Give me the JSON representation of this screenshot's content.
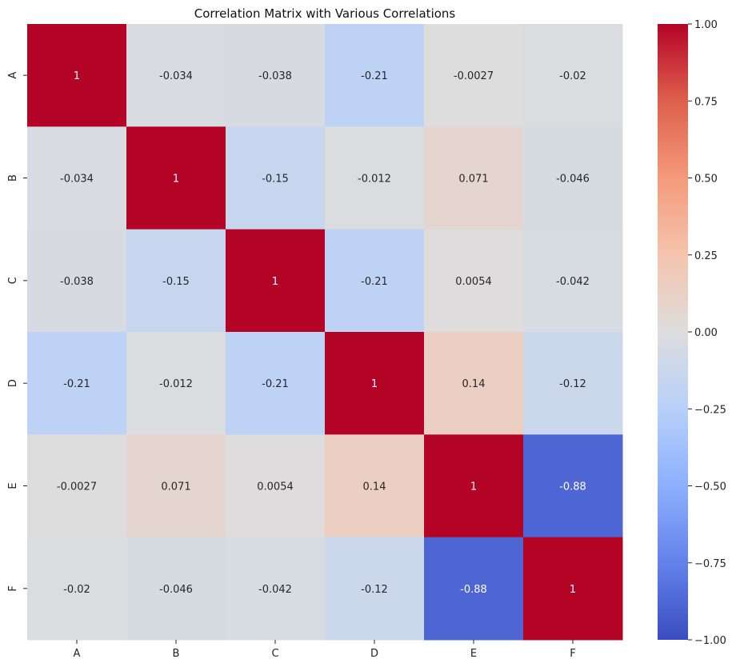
{
  "chart_data": {
    "type": "heatmap",
    "title": "Correlation Matrix with Various Correlations",
    "xlabel": "",
    "ylabel": "",
    "x_categories": [
      "A",
      "B",
      "C",
      "D",
      "E",
      "F"
    ],
    "y_categories": [
      "A",
      "B",
      "C",
      "D",
      "E",
      "F"
    ],
    "values": [
      [
        1,
        -0.034,
        -0.038,
        -0.21,
        -0.0027,
        -0.02
      ],
      [
        -0.034,
        1,
        -0.15,
        -0.012,
        0.071,
        -0.046
      ],
      [
        -0.038,
        -0.15,
        1,
        -0.21,
        0.0054,
        -0.042
      ],
      [
        -0.21,
        -0.012,
        -0.21,
        1,
        0.14,
        -0.12
      ],
      [
        -0.0027,
        0.071,
        0.0054,
        0.14,
        1,
        -0.88
      ],
      [
        -0.02,
        -0.046,
        -0.042,
        -0.12,
        -0.88,
        1
      ]
    ],
    "annotations": [
      [
        "1",
        "-0.034",
        "-0.038",
        "-0.21",
        "-0.0027",
        "-0.02"
      ],
      [
        "-0.034",
        "1",
        "-0.15",
        "-0.012",
        "0.071",
        "-0.046"
      ],
      [
        "-0.038",
        "-0.15",
        "1",
        "-0.21",
        "0.0054",
        "-0.042"
      ],
      [
        "-0.21",
        "-0.012",
        "-0.21",
        "1",
        "0.14",
        "-0.12"
      ],
      [
        "-0.0027",
        "0.071",
        "0.0054",
        "0.14",
        "1",
        "-0.88"
      ],
      [
        "-0.02",
        "-0.046",
        "-0.042",
        "-0.12",
        "-0.88",
        "1"
      ]
    ],
    "colormap": "coolwarm",
    "vmin": -1,
    "vmax": 1,
    "colorbar": {
      "ticks": [
        1.0,
        0.75,
        0.5,
        0.25,
        0.0,
        -0.25,
        -0.5,
        -0.75,
        -1.0
      ],
      "tick_labels": [
        "1.00",
        "0.75",
        "0.50",
        "0.25",
        "0.00",
        "−0.25",
        "−0.50",
        "−0.75",
        "−1.00"
      ],
      "placement": "right"
    },
    "grid": false
  }
}
